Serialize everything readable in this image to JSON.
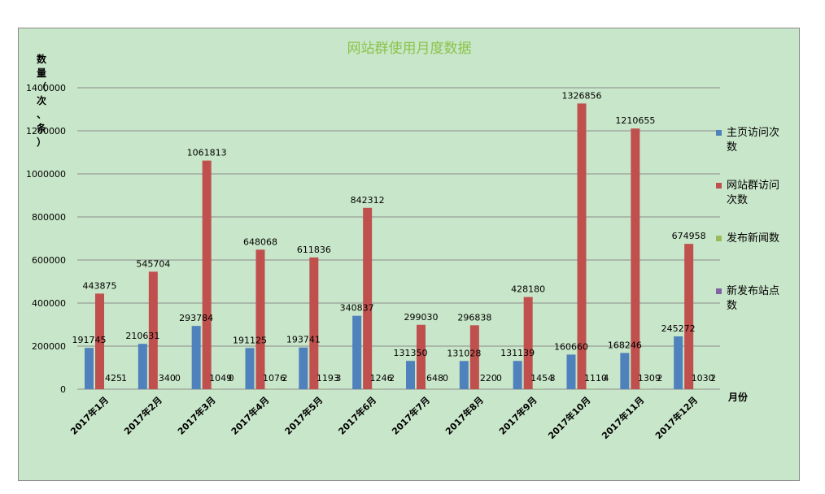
{
  "chart_data": {
    "type": "bar",
    "title": "网站群使用月度数据",
    "ylabel": "数量（次、条）",
    "xlabel": "月份",
    "ylim": [
      0,
      1400000
    ],
    "yticks": [
      0,
      200000,
      400000,
      600000,
      800000,
      1000000,
      1200000,
      1400000
    ],
    "grid": true,
    "legend_position": "right",
    "categories": [
      "2017年1月",
      "2017年2月",
      "2017年3月",
      "2017年4月",
      "2017年5月",
      "2017年6月",
      "2017年7月",
      "2017年8月",
      "2017年9月",
      "2017年10月",
      "2017年11月",
      "2017年12月"
    ],
    "series": [
      {
        "name": "主页访问次数",
        "color": "#4f81bd",
        "values": [
          191745,
          210631,
          293784,
          191125,
          193741,
          340837,
          131350,
          131028,
          131139,
          160660,
          168246,
          245272
        ],
        "labels": [
          "191745",
          "210631",
          "293784",
          "191125",
          "193741",
          "340837",
          "131350",
          "131028",
          "131139",
          "160660",
          "168246",
          "245272"
        ]
      },
      {
        "name": "网站群访问次数",
        "color": "#c0504d",
        "values": [
          443875,
          545704,
          1061813,
          648068,
          611836,
          842312,
          299030,
          296838,
          428180,
          1326856,
          1210655,
          674958
        ],
        "labels": [
          "443875",
          "545704",
          "1061813",
          "648068",
          "611836",
          "842312",
          "299030",
          "296838",
          "428180",
          "1326856",
          "1210655",
          "674958"
        ]
      },
      {
        "name": "发布新闻数",
        "color": "#9bbb59",
        "values": [
          425,
          340,
          1049,
          1076,
          1193,
          1246,
          648,
          220,
          1454,
          1110,
          1309,
          1030
        ],
        "labels": [
          "425",
          "340",
          "1049",
          "1076",
          "1193",
          "1246",
          "648",
          "220",
          "1454",
          "1110",
          "1309",
          "1030"
        ]
      },
      {
        "name": "新发布站点数",
        "color": "#8064a2",
        "values": [
          1,
          0,
          0,
          2,
          3,
          2,
          0,
          0,
          3,
          4,
          2,
          2
        ],
        "labels": [
          "1",
          "0",
          "0",
          "2",
          "3",
          "2",
          "0",
          "0",
          "3",
          "4",
          "2",
          "2"
        ]
      }
    ]
  }
}
